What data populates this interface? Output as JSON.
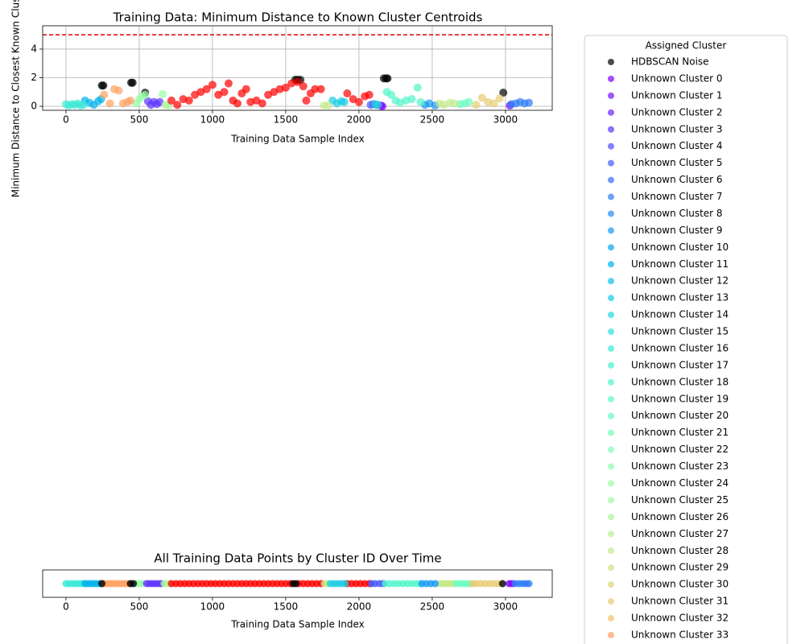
{
  "chart_data": [
    {
      "type": "scatter",
      "title": "Training Data: Minimum Distance to Known Cluster Centroids",
      "x_label": "Training Data Sample Index",
      "y_label": "Minimum Distance to Closest Known Cluster Centroid",
      "legend_title": "Assigned Cluster",
      "xlim": [
        -159,
        3319
      ],
      "ylim": [
        -0.28,
        5.63
      ],
      "xticks": [
        0,
        500,
        1000,
        1500,
        2000,
        2500,
        3000
      ],
      "yticks": [
        0,
        2,
        4
      ],
      "grid": true,
      "threshold": 5,
      "threshold_color": "#e00000",
      "series": [
        {
          "name": "HDBSCAN Noise",
          "color": "#000000",
          "x": [
            245,
            255,
            445,
            455,
            540,
            1565,
            1580,
            1600,
            2170,
            2185,
            2195,
            2985
          ],
          "values": [
            1.45,
            1.45,
            1.65,
            1.65,
            0.95,
            1.85,
            1.85,
            1.85,
            1.95,
            1.95,
            1.95,
            0.95
          ]
        },
        {
          "name": "Unknown Cluster 0",
          "color": "#8000ff",
          "x": [
            2150,
            2160,
            3030
          ],
          "values": [
            0.05,
            0,
            0.05
          ]
        },
        {
          "name": "Unknown Cluster 1",
          "color": "#7412ff",
          "x": [],
          "values": []
        },
        {
          "name": "Unknown Cluster 2",
          "color": "#6824fe",
          "x": [],
          "values": []
        },
        {
          "name": "Unknown Cluster 3",
          "color": "#5d36fd",
          "x": [
            560,
            580,
            600,
            620,
            640
          ],
          "values": [
            0.35,
            0.1,
            0.3,
            0.15,
            0.3
          ]
        },
        {
          "name": "Unknown Cluster 4",
          "color": "#5148fc",
          "x": [],
          "values": []
        },
        {
          "name": "Unknown Cluster 5",
          "color": "#4559fb",
          "x": [
            2080,
            2100,
            2120
          ],
          "values": [
            0.1,
            0.15,
            0.1
          ]
        },
        {
          "name": "Unknown Cluster 6",
          "color": "#3a6af9",
          "x": [],
          "values": []
        },
        {
          "name": "Unknown Cluster 7",
          "color": "#2e7af7",
          "x": [
            3040,
            3070,
            3100,
            3130,
            3160
          ],
          "values": [
            0.15,
            0.2,
            0.3,
            0.2,
            0.25
          ]
        },
        {
          "name": "Unknown Cluster 8",
          "color": "#238af5",
          "x": [],
          "values": []
        },
        {
          "name": "Unknown Cluster 9",
          "color": "#1799f2",
          "x": [
            2450,
            2480,
            2520
          ],
          "values": [
            0.1,
            0.2,
            0.05
          ]
        },
        {
          "name": "Unknown Cluster 10",
          "color": "#0ba7ef",
          "x": [],
          "values": []
        },
        {
          "name": "Unknown Cluster 11",
          "color": "#00b4eb",
          "x": [
            130,
            160,
            190,
            220,
            240
          ],
          "values": [
            0.4,
            0.25,
            0.1,
            0.35,
            0.5
          ]
        },
        {
          "name": "Unknown Cluster 12",
          "color": "#0bc1e8",
          "x": [],
          "values": []
        },
        {
          "name": "Unknown Cluster 13",
          "color": "#17cce4",
          "x": [
            1820,
            1850,
            1880,
            1900
          ],
          "values": [
            0.4,
            0.2,
            0.35,
            0.3
          ]
        },
        {
          "name": "Unknown Cluster 14",
          "color": "#23d7df",
          "x": [
            2110,
            2130
          ],
          "values": [
            0.15,
            0.1
          ]
        },
        {
          "name": "Unknown Cluster 15",
          "color": "#2ee0db",
          "x": [],
          "values": []
        },
        {
          "name": "Unknown Cluster 16",
          "color": "#3ae9d6",
          "x": [
            0,
            20,
            40,
            60,
            80,
            100,
            120
          ],
          "values": [
            0.15,
            0.05,
            0.15,
            0.1,
            0.2,
            0.05,
            0.1
          ]
        },
        {
          "name": "Unknown Cluster 17",
          "color": "#45efd1",
          "x": [],
          "values": []
        },
        {
          "name": "Unknown Cluster 18",
          "color": "#51f5cb",
          "x": [
            2190,
            2220,
            2250,
            2280,
            2320,
            2360,
            2400,
            2420
          ],
          "values": [
            1.0,
            0.8,
            0.4,
            0.25,
            0.4,
            0.5,
            1.3,
            0.3
          ]
        },
        {
          "name": "Unknown Cluster 19",
          "color": "#5df9c5",
          "x": [],
          "values": []
        },
        {
          "name": "Unknown Cluster 20",
          "color": "#68fcbf",
          "x": [
            2690,
            2720,
            2750
          ],
          "values": [
            0.15,
            0.2,
            0.3
          ]
        },
        {
          "name": "Unknown Cluster 21",
          "color": "#74feb9",
          "x": [],
          "values": []
        },
        {
          "name": "Unknown Cluster 22",
          "color": "#80ffb4",
          "x": [],
          "values": []
        },
        {
          "name": "Unknown Cluster 23",
          "color": "#8bfeae",
          "x": [],
          "values": []
        },
        {
          "name": "Unknown Cluster 24",
          "color": "#97fca7",
          "x": [
            480,
            500,
            520,
            540,
            660
          ],
          "values": [
            0.2,
            0.5,
            0.7,
            0.8,
            0.85
          ]
        },
        {
          "name": "Unknown Cluster 25",
          "color": "#a2f9a0",
          "x": [],
          "values": []
        },
        {
          "name": "Unknown Cluster 26",
          "color": "#aef599",
          "x": [
            680,
            700
          ],
          "values": [
            0.1,
            0.05
          ]
        },
        {
          "name": "Unknown Cluster 27",
          "color": "#b9ef91",
          "x": [],
          "values": []
        },
        {
          "name": "Unknown Cluster 28",
          "color": "#c5e98a",
          "x": [
            1760,
            1790,
            2550,
            2580,
            2620,
            2650
          ],
          "values": [
            0.05,
            0.05,
            0.2,
            0.1,
            0.25,
            0.2
          ]
        },
        {
          "name": "Unknown Cluster 29",
          "color": "#d1e082",
          "x": [],
          "values": []
        },
        {
          "name": "Unknown Cluster 30",
          "color": "#dcd77a",
          "x": [],
          "values": []
        },
        {
          "name": "Unknown Cluster 31",
          "color": "#e8cc72",
          "x": [
            2800,
            2840,
            2880,
            2920,
            2960
          ],
          "values": [
            0.1,
            0.6,
            0.3,
            0.2,
            0.55
          ]
        },
        {
          "name": "Unknown Cluster 32",
          "color": "#f3c16a",
          "x": [],
          "values": []
        },
        {
          "name": "Unknown Cluster 33",
          "color": "#ffa060",
          "x": [
            260,
            300,
            330,
            360,
            390,
            420,
            440
          ],
          "values": [
            0.8,
            0.2,
            1.2,
            1.1,
            0.2,
            0.3,
            0.4
          ]
        },
        {
          "color": "#ff0000",
          "x": [
            720,
            760,
            800,
            840,
            880,
            920,
            960,
            1000,
            1040,
            1080,
            1110,
            1140,
            1170,
            1200,
            1230,
            1260,
            1300,
            1340,
            1380,
            1420,
            1460,
            1500,
            1540,
            1580,
            1620,
            1640,
            1670,
            1700,
            1740,
            1920,
            1960,
            2000,
            2040,
            2070
          ],
          "values": [
            0.4,
            0.1,
            0.5,
            0.4,
            0.8,
            1.0,
            1.2,
            1.5,
            0.8,
            1.0,
            1.6,
            0.4,
            0.2,
            0.9,
            1.2,
            0.3,
            0.4,
            0.2,
            0.8,
            1.0,
            1.2,
            1.3,
            1.6,
            1.7,
            1.4,
            0.4,
            0.9,
            1.2,
            1.2,
            0.9,
            0.5,
            0.3,
            0.7,
            0.8
          ]
        }
      ]
    },
    {
      "type": "strip",
      "title": "All Training Data Points by Cluster ID Over Time",
      "x_label": "Training Data Sample Index",
      "xlim": [
        -159,
        3319
      ],
      "xticks": [
        0,
        500,
        1000,
        1500,
        2000,
        2500,
        3000
      ],
      "series": [
        {
          "color": "#3ae9d6",
          "x": [
            0,
            20,
            40,
            60,
            80,
            100,
            120
          ]
        },
        {
          "color": "#00b4eb",
          "x": [
            130,
            150,
            170,
            190,
            210,
            230
          ]
        },
        {
          "color": "#ffa060",
          "x": [
            260,
            280,
            300,
            320,
            340,
            360,
            380,
            400,
            420
          ]
        },
        {
          "color": "#97fca7",
          "x": [
            480,
            500,
            520
          ]
        },
        {
          "color": "#5d36fd",
          "x": [
            550,
            570,
            590,
            610,
            630,
            650
          ]
        },
        {
          "color": "#aef599",
          "x": [
            670,
            690,
            710
          ]
        },
        {
          "color": "#ff0000",
          "x": [
            720,
            750,
            780,
            810,
            840,
            870,
            900,
            930,
            960,
            990,
            1020,
            1050,
            1080,
            1110,
            1140,
            1170,
            1200,
            1230,
            1260,
            1290,
            1320,
            1350,
            1380,
            1410,
            1440,
            1470,
            1500,
            1530,
            1590,
            1620,
            1650,
            1680,
            1710,
            1740,
            1920,
            1950,
            1980,
            2010,
            2040,
            2070
          ]
        },
        {
          "color": "#c5e98a",
          "x": [
            1765,
            1785,
            2550,
            2570,
            2590,
            2610,
            2630,
            2650
          ]
        },
        {
          "color": "#17cce4",
          "x": [
            1805,
            1830,
            1855,
            1880,
            1905
          ]
        },
        {
          "color": "#4559fb",
          "x": [
            2085,
            2110,
            2140,
            2165
          ]
        },
        {
          "color": "#51f5cb",
          "x": [
            2180,
            2210,
            2240,
            2270,
            2300,
            2330,
            2360,
            2390,
            2415
          ]
        },
        {
          "color": "#1799f2",
          "x": [
            2430,
            2460,
            2490,
            2520
          ]
        },
        {
          "color": "#68fcbf",
          "x": [
            2665,
            2690,
            2715,
            2740,
            2760
          ]
        },
        {
          "color": "#e8cc72",
          "x": [
            2775,
            2800,
            2830,
            2860,
            2890,
            2920,
            2950
          ]
        },
        {
          "color": "#8000ff",
          "x": [
            3025,
            3045
          ]
        },
        {
          "color": "#2e7af7",
          "x": [
            3065,
            3090,
            3115,
            3140,
            3160
          ]
        },
        {
          "color": "#000000",
          "x": [
            245,
            440,
            460,
            1550,
            1570,
            2980
          ]
        }
      ]
    }
  ]
}
